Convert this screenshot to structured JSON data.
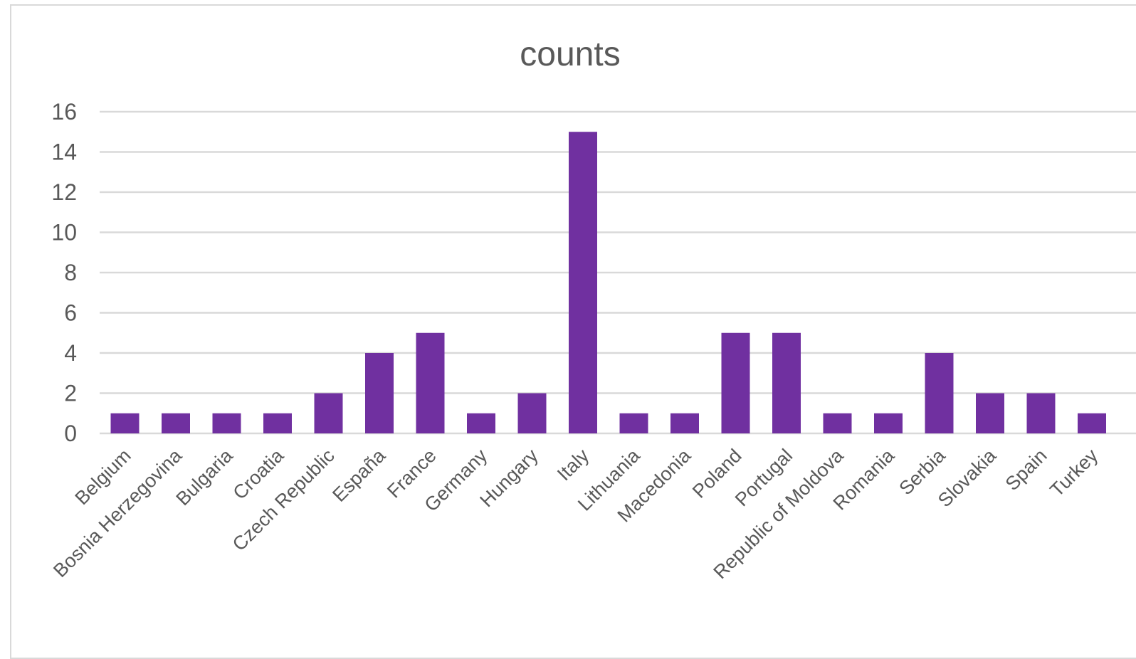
{
  "chart_data": {
    "type": "bar",
    "title": "counts",
    "xlabel": "",
    "ylabel": "",
    "categories": [
      "Belgium",
      "Bosnia Herzegovina",
      "Bulgaria",
      "Croatia",
      "Czech Republic",
      "España",
      "France",
      "Germany",
      "Hungary",
      "Italy",
      "Lithuania",
      "Macedonia",
      "Poland",
      "Portugal",
      "Republic of Moldova",
      "Romania",
      "Serbia",
      "Slovakia",
      "Spain",
      "Turkey"
    ],
    "values": [
      1,
      1,
      1,
      1,
      2,
      4,
      5,
      1,
      2,
      15,
      1,
      1,
      5,
      5,
      1,
      1,
      4,
      2,
      2,
      1
    ],
    "ylim": [
      0,
      16
    ],
    "yticks": [
      0,
      2,
      4,
      6,
      8,
      10,
      12,
      14,
      16
    ],
    "grid": true,
    "legend": "none",
    "bar_color": "#7030a0",
    "grid_color": "#d9d9d9",
    "text_color": "#595959"
  }
}
